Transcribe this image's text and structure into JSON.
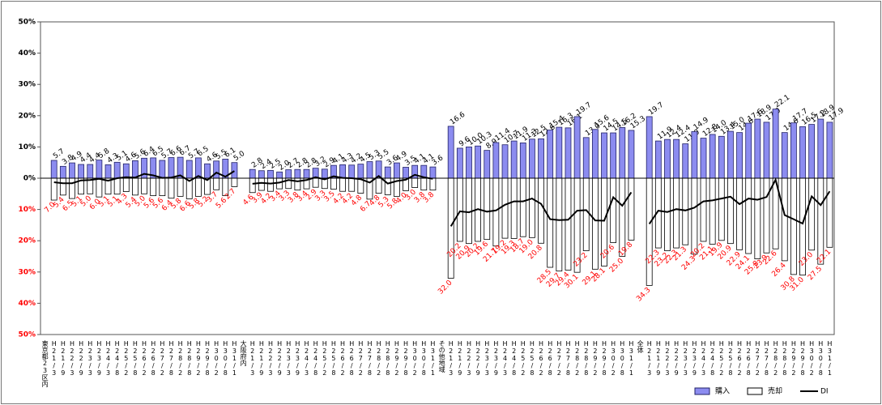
{
  "chart_data": {
    "type": "bar",
    "categories": [
      "東京都23区内",
      "H21/3",
      "H21/9",
      "H22/3",
      "H22/9",
      "H23/3",
      "H23/9",
      "H24/3",
      "H24/8",
      "H25/2",
      "H25/8",
      "H26/2",
      "H26/8",
      "H27/2",
      "H27/8",
      "H28/2",
      "H28/8",
      "H29/2",
      "H29/8",
      "H30/2",
      "H30/8",
      "H31/1",
      "大阪府内",
      "H21/3",
      "H21/9",
      "H22/3",
      "H22/9",
      "H23/3",
      "H23/9",
      "H24/3",
      "H24/8",
      "H25/2",
      "H25/8",
      "H26/2",
      "H26/8",
      "H27/2",
      "H27/8",
      "H28/2",
      "H28/8",
      "H29/2",
      "H29/8",
      "H30/2",
      "H30/8",
      "H31/1",
      "その他地域",
      "H21/3",
      "H21/9",
      "H22/3",
      "H22/9",
      "H23/3",
      "H23/9",
      "H24/3",
      "H24/8",
      "H25/2",
      "H25/8",
      "H26/2",
      "H26/8",
      "H27/2",
      "H27/8",
      "H28/2",
      "H28/8",
      "H29/2",
      "H29/8",
      "H30/2",
      "H30/8",
      "H31/1",
      "全体",
      "H21/3",
      "H21/9",
      "H22/3",
      "H22/9",
      "H23/3",
      "H23/9",
      "H24/3",
      "H24/8",
      "H25/2",
      "H25/8",
      "H26/2",
      "H26/8",
      "H27/2",
      "H27/8",
      "H28/2",
      "H28/8",
      "H29/2",
      "H29/8",
      "H30/2",
      "H30/8",
      "H31/1"
    ],
    "series": [
      {
        "name": "購入",
        "type": "bar",
        "color": "#8c8cf0",
        "edgecolor": "#222266",
        "label_color": "#000000",
        "values": [
          null,
          5.7,
          3.8,
          4.9,
          4.4,
          4.4,
          5.8,
          4.3,
          5.1,
          4.6,
          5.6,
          6.4,
          6.5,
          5.7,
          6.6,
          6.7,
          5.7,
          6.5,
          4.6,
          5.5,
          6.1,
          5.0,
          null,
          2.8,
          2.4,
          2.5,
          2.0,
          2.7,
          2.8,
          2.8,
          3.2,
          2.9,
          4.1,
          4.3,
          4.2,
          4.5,
          5.3,
          5.5,
          3.6,
          4.9,
          3.5,
          4.1,
          4.1,
          3.6,
          null,
          16.6,
          9.6,
          10.0,
          10.3,
          8.9,
          11.4,
          10.7,
          11.9,
          11.3,
          12.5,
          12.6,
          15.4,
          16.3,
          16.1,
          19.7,
          13.0,
          15.6,
          14.5,
          14.5,
          16.2,
          15.3,
          null,
          19.7,
          11.9,
          12.4,
          12.4,
          11.0,
          14.9,
          12.8,
          14.0,
          13.4,
          15.0,
          14.6,
          17.6,
          18.9,
          17.9,
          22.1,
          14.6,
          17.7,
          16.5,
          17.2,
          18.9,
          17.9
        ],
        "value_labels": [
          null,
          "5.7",
          "3.8",
          "4.9",
          "4.4",
          "4.4",
          "5.8",
          "4.3",
          "5.1",
          "4.6",
          "5.6",
          "6.4",
          "6.5",
          "5.7",
          "6.6",
          "6.7",
          "5.7",
          "6.5",
          "4.6",
          "5.5",
          "6.1",
          "5.0",
          null,
          "2.8",
          "2.4",
          "2.5",
          "2.0",
          "2.7",
          "2.8",
          "2.8",
          "3.2",
          "2.9",
          "4.1",
          "4.3",
          "4.2",
          "4.5",
          "5.3",
          "5.5",
          "3.6",
          "4.9",
          "3.5",
          "4.1",
          "4.1",
          "3.6",
          null,
          "16.6",
          "9.6",
          "10.0",
          "10.3",
          "8.9",
          "11.4",
          "10.7",
          "11.9",
          "11.3",
          "12.5",
          "12.6",
          "15.4",
          "16.3",
          "16.1",
          "19.7",
          "13.0",
          "15.6",
          "14.5",
          "14.5",
          "16.2",
          "15.3",
          null,
          "19.7",
          "11.9",
          "12.4",
          "12.4",
          "11.0",
          "14.9",
          "12.8",
          "14.0",
          "13.4",
          "15.0",
          "14.6",
          "17.6",
          "18.9",
          "17.9",
          "22.1",
          "14.6",
          "17.7",
          "16.5",
          "17.2",
          "18.9",
          "17.9"
        ]
      },
      {
        "name": "売却",
        "type": "bar",
        "color": "#ffffff",
        "edgecolor": "#000000",
        "label_color": "#ff0000",
        "values": [
          null,
          -7.0,
          -5.4,
          -6.5,
          -5.1,
          -5.0,
          -6.0,
          -5.1,
          -5.1,
          -4.3,
          -5.4,
          -5.0,
          -5.6,
          -5.6,
          -6.4,
          -5.8,
          -6.6,
          -5.8,
          -5.2,
          -3.7,
          -5.6,
          -2.7,
          null,
          -4.6,
          -3.9,
          -4.2,
          -3.4,
          -3.3,
          -3.8,
          -3.4,
          -2.9,
          -3.3,
          -3.5,
          -4.2,
          -4.2,
          -4.8,
          -6.7,
          -4.8,
          -5.3,
          -5.8,
          -4.0,
          -3.0,
          -3.8,
          -3.8,
          null,
          -32.0,
          -20.2,
          -20.9,
          -20.2,
          -19.6,
          -21.7,
          -19.2,
          -19.3,
          -18.7,
          -19.0,
          -20.8,
          -28.5,
          -29.7,
          -29.4,
          -30.1,
          -23.2,
          -29.1,
          -28.1,
          -20.6,
          -25.0,
          -19.8,
          null,
          -34.3,
          -22.3,
          -23.2,
          -22.3,
          -21.3,
          -24.3,
          -20.2,
          -21.1,
          -19.9,
          -20.9,
          -22.9,
          -24.1,
          -25.8,
          -23.9,
          -22.6,
          -26.4,
          -30.8,
          -31.0,
          -23.0,
          -27.5,
          -22.1
        ],
        "value_labels": [
          null,
          "7.0",
          "5.4",
          "6.5",
          "5.1",
          "5.0",
          "6.0",
          "5.1",
          "5.1",
          "4.3",
          "5.4",
          "5.0",
          "5.6",
          "5.6",
          "6.4",
          "5.8",
          "6.6",
          "5.8",
          "5.2",
          "3.7",
          "5.6",
          "2.7",
          null,
          "4.6",
          "3.9",
          "4.2",
          "3.4",
          "3.3",
          "3.8",
          "3.4",
          "2.9",
          "3.3",
          "3.5",
          "4.2",
          "4.2",
          "4.8",
          "6.7",
          "4.8",
          "5.3",
          "5.8",
          "4.0",
          "3.0",
          "3.8",
          "3.8",
          null,
          "32.0",
          "20.2",
          "20.9",
          "20.2",
          "19.6",
          "21.7",
          "19.2",
          "19.3",
          "18.7",
          "19.0",
          "20.8",
          "28.5",
          "29.7",
          "29.4",
          "30.1",
          "23.2",
          "29.1",
          "28.1",
          "20.6",
          "25.0",
          "19.8",
          null,
          "34.3",
          "22.3",
          "23.2",
          "22.3",
          "21.3",
          "24.3",
          "20.2",
          "21.1",
          "19.9",
          "20.9",
          "22.9",
          "24.1",
          "25.8",
          "23.9",
          "22.6",
          "26.4",
          "30.8",
          "31.0",
          "23.0",
          "27.5",
          "22.1"
        ]
      },
      {
        "name": "DI",
        "type": "line",
        "color": "#000000",
        "values": [
          null,
          -1.3,
          -1.6,
          -1.6,
          -0.7,
          -0.6,
          -0.2,
          -0.8,
          0.0,
          0.3,
          0.2,
          1.4,
          0.9,
          0.1,
          0.2,
          0.9,
          -0.9,
          0.7,
          -0.6,
          1.8,
          0.5,
          2.3,
          null,
          -1.8,
          -1.5,
          -1.7,
          -1.4,
          -0.6,
          -1.0,
          -0.6,
          0.3,
          -0.4,
          0.6,
          0.1,
          0.0,
          -0.3,
          -1.4,
          0.7,
          -1.7,
          -0.9,
          -0.5,
          1.1,
          0.3,
          -0.2,
          null,
          -15.4,
          -10.6,
          -10.9,
          -9.9,
          -10.7,
          -10.3,
          -8.5,
          -7.4,
          -7.4,
          -6.5,
          -8.2,
          -13.1,
          -13.4,
          -13.3,
          -10.4,
          -10.2,
          -13.5,
          -13.6,
          -6.1,
          -8.8,
          -4.5,
          null,
          -14.6,
          -10.4,
          -10.8,
          -9.9,
          -10.3,
          -9.4,
          -7.4,
          -7.1,
          -6.5,
          -5.9,
          -8.3,
          -6.5,
          -6.9,
          -6.0,
          -0.5,
          -11.8,
          -13.1,
          -14.5,
          -5.8,
          -8.6,
          -4.2
        ]
      }
    ],
    "ylim": [
      -50,
      50
    ],
    "yticks": [
      {
        "value": 50,
        "label": "50%"
      },
      {
        "value": 40,
        "label": "40%"
      },
      {
        "value": 30,
        "label": "30%"
      },
      {
        "value": 20,
        "label": "20%"
      },
      {
        "value": 10,
        "label": "10%"
      },
      {
        "value": 0,
        "label": "0%"
      },
      {
        "value": -10,
        "label": "10%"
      },
      {
        "value": -20,
        "label": "20%"
      },
      {
        "value": -30,
        "label": "30%"
      },
      {
        "value": -40,
        "label": "40%"
      },
      {
        "value": -50,
        "label": "50%"
      }
    ],
    "negative_tick_color": "#ff0000",
    "legend": "lower right"
  }
}
